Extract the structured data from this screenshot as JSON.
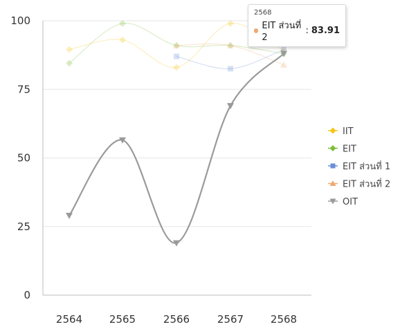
{
  "chart_data": {
    "type": "line",
    "categories": [
      "2564",
      "2565",
      "2566",
      "2567",
      "2568"
    ],
    "ylim": [
      0,
      100
    ],
    "yticks": [
      0,
      25,
      50,
      75,
      100
    ],
    "grid": true,
    "legend_position": "right",
    "series": [
      {
        "name": "IIT",
        "values": [
          89.5,
          93,
          83,
          99,
          89
        ],
        "color": "#f5c518",
        "marker": "diamond",
        "faded": true
      },
      {
        "name": "EIT",
        "values": [
          84.5,
          99,
          91,
          91,
          88
        ],
        "color": "#7cbf3a",
        "marker": "diamond",
        "faded": true
      },
      {
        "name": "EIT ส่วนที่ 1",
        "values": [
          null,
          null,
          87,
          82.5,
          89.5
        ],
        "color": "#6b8fd6",
        "marker": "square",
        "faded": true
      },
      {
        "name": "EIT ส่วนที่ 2",
        "values": [
          null,
          null,
          91,
          91,
          83.91
        ],
        "color": "#f0a870",
        "marker": "triangle",
        "faded": true
      },
      {
        "name": "OIT",
        "values": [
          29,
          56.5,
          19,
          69,
          88
        ],
        "color": "#9a9a9a",
        "marker": "triangle-down",
        "faded": false
      }
    ],
    "tooltip": {
      "title": "2568",
      "series": "EIT ส่วนที่ 2",
      "value": "83.91",
      "color": "#f0a870"
    }
  }
}
